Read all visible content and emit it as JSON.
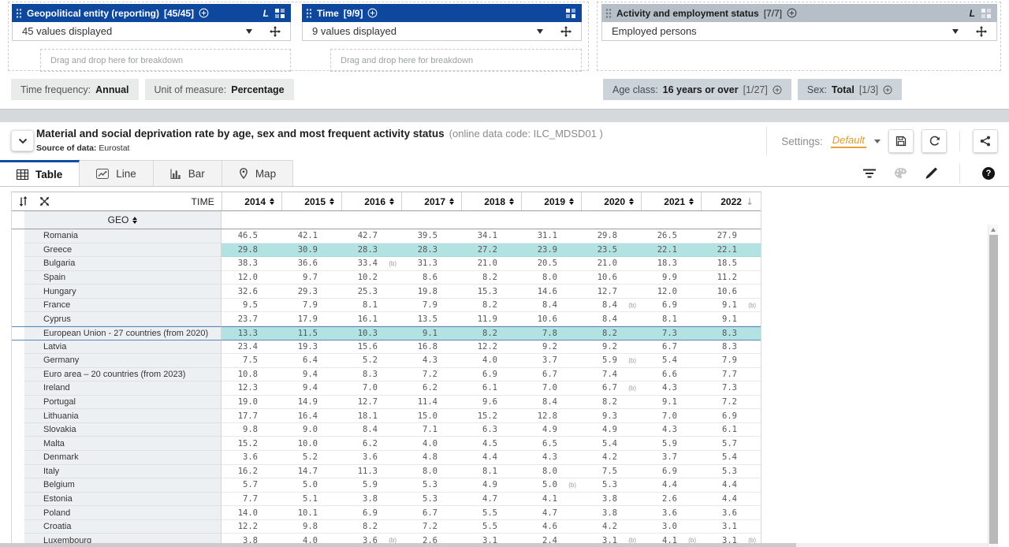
{
  "dimensions": {
    "boxes": [
      {
        "title": "Geopolitical entity (reporting)",
        "count": "[45/45]",
        "value": "45 values displayed",
        "drag_label": "Drag and drop here for breakdown"
      },
      {
        "title": "Time",
        "count": "[9/9]",
        "value": "9 values displayed",
        "drag_label": "Drag and drop here for breakdown"
      },
      {
        "title": "Activity and employment status",
        "count": "[7/7]",
        "value": "Employed persons"
      }
    ]
  },
  "filters": {
    "left": [
      {
        "label": "Time frequency:",
        "value": "Annual"
      },
      {
        "label": "Unit of measure:",
        "value": "Percentage"
      }
    ],
    "right": [
      {
        "label": "Age class:",
        "value": "16 years or over",
        "count": "[1/27]"
      },
      {
        "label": "Sex:",
        "value": "Total",
        "count": "[1/3]"
      }
    ]
  },
  "dataset": {
    "title": "Material and social deprivation rate by age, sex and most frequent activity status",
    "code": "(online data code: ILC_MDSD01 )",
    "source_label": "Source of data:",
    "source_value": "Eurostat",
    "settings_label": "Settings:",
    "settings_value": "Default"
  },
  "tabs": [
    {
      "label": "Table",
      "active": true
    },
    {
      "label": "Line",
      "active": false
    },
    {
      "label": "Bar",
      "active": false
    },
    {
      "label": "Map",
      "active": false
    }
  ],
  "table": {
    "corner_label": "TIME",
    "geo_label": "GEO",
    "years": [
      "2014",
      "2015",
      "2016",
      "2017",
      "2018",
      "2019",
      "2020",
      "2021",
      "2022"
    ],
    "sorted_year": "2022",
    "sort_direction": "descending",
    "flag_note": "(b)",
    "rows": [
      {
        "geo": "Romania",
        "values": [
          "46.5",
          "42.1",
          "42.7",
          "39.5",
          "34.1",
          "31.1",
          "29.8",
          "26.5",
          "27.9"
        ]
      },
      {
        "geo": "Greece",
        "highlight": true,
        "values": [
          "29.8",
          "30.9",
          "28.3",
          "28.3",
          "27.2",
          "23.9",
          "23.5",
          "22.1",
          "22.1"
        ]
      },
      {
        "geo": "Bulgaria",
        "values": [
          "38.3",
          "36.6",
          "33.4",
          "31.3",
          "21.0",
          "20.5",
          "21.0",
          "18.3",
          "18.5"
        ],
        "flags": {
          "2": "(b)"
        }
      },
      {
        "geo": "Spain",
        "values": [
          "12.0",
          "9.7",
          "10.2",
          "8.6",
          "8.2",
          "8.0",
          "10.6",
          "9.9",
          "11.2"
        ]
      },
      {
        "geo": "Hungary",
        "values": [
          "32.6",
          "29.3",
          "25.3",
          "19.8",
          "15.3",
          "14.6",
          "12.7",
          "12.0",
          "10.6"
        ]
      },
      {
        "geo": "France",
        "values": [
          "9.5",
          "7.9",
          "8.1",
          "7.9",
          "8.2",
          "8.4",
          "8.4",
          "6.9",
          "9.1"
        ],
        "flags": {
          "6": "(b)",
          "8": "(b)"
        }
      },
      {
        "geo": "Cyprus",
        "values": [
          "23.7",
          "17.9",
          "16.1",
          "13.5",
          "11.9",
          "10.6",
          "8.4",
          "8.1",
          "9.1"
        ]
      },
      {
        "geo": "European Union - 27 countries (from 2020)",
        "highlight": true,
        "eu_border": true,
        "values": [
          "13.3",
          "11.5",
          "10.3",
          "9.1",
          "8.2",
          "7.8",
          "8.2",
          "7.3",
          "8.3"
        ]
      },
      {
        "geo": "Latvia",
        "values": [
          "23.4",
          "19.3",
          "15.6",
          "16.8",
          "12.2",
          "9.2",
          "9.2",
          "6.7",
          "8.3"
        ]
      },
      {
        "geo": "Germany",
        "values": [
          "7.5",
          "6.4",
          "5.2",
          "4.3",
          "4.0",
          "3.7",
          "5.9",
          "5.4",
          "7.9"
        ],
        "flags": {
          "6": "(b)"
        }
      },
      {
        "geo": "Euro area – 20 countries (from 2023)",
        "values": [
          "10.8",
          "9.4",
          "8.3",
          "7.2",
          "6.9",
          "6.7",
          "7.4",
          "6.6",
          "7.7"
        ]
      },
      {
        "geo": "Ireland",
        "values": [
          "12.3",
          "9.4",
          "7.0",
          "6.2",
          "6.1",
          "7.0",
          "6.7",
          "4.3",
          "7.3"
        ],
        "flags": {
          "6": "(b)"
        }
      },
      {
        "geo": "Portugal",
        "values": [
          "19.0",
          "14.9",
          "12.7",
          "11.4",
          "9.6",
          "8.4",
          "8.2",
          "9.1",
          "7.2"
        ]
      },
      {
        "geo": "Lithuania",
        "values": [
          "17.7",
          "16.4",
          "18.1",
          "15.0",
          "15.2",
          "12.8",
          "9.3",
          "7.0",
          "6.9"
        ]
      },
      {
        "geo": "Slovakia",
        "values": [
          "9.8",
          "9.0",
          "8.4",
          "7.1",
          "6.3",
          "4.9",
          "4.9",
          "4.3",
          "6.1"
        ]
      },
      {
        "geo": "Malta",
        "values": [
          "15.2",
          "10.0",
          "6.2",
          "4.0",
          "4.5",
          "6.5",
          "5.4",
          "5.9",
          "5.7"
        ]
      },
      {
        "geo": "Denmark",
        "values": [
          "3.6",
          "5.2",
          "3.6",
          "4.8",
          "4.4",
          "4.3",
          "4.2",
          "3.7",
          "5.4"
        ]
      },
      {
        "geo": "Italy",
        "values": [
          "16.2",
          "14.7",
          "11.3",
          "8.0",
          "8.1",
          "8.0",
          "7.5",
          "6.9",
          "5.3"
        ]
      },
      {
        "geo": "Belgium",
        "values": [
          "5.7",
          "5.0",
          "5.9",
          "5.3",
          "4.9",
          "5.0",
          "5.3",
          "4.4",
          "4.4"
        ],
        "flags": {
          "5": "(b)"
        }
      },
      {
        "geo": "Estonia",
        "values": [
          "7.7",
          "5.1",
          "3.8",
          "5.3",
          "4.7",
          "4.1",
          "3.8",
          "2.6",
          "4.4"
        ]
      },
      {
        "geo": "Poland",
        "values": [
          "14.0",
          "10.1",
          "6.9",
          "6.7",
          "5.5",
          "4.7",
          "3.8",
          "3.6",
          "3.6"
        ]
      },
      {
        "geo": "Croatia",
        "values": [
          "12.2",
          "9.8",
          "8.2",
          "7.2",
          "5.5",
          "4.6",
          "4.2",
          "3.0",
          "3.1"
        ]
      },
      {
        "geo": "Luxembourg",
        "values": [
          "3.8",
          "4.0",
          "3.6",
          "2.6",
          "3.1",
          "2.4",
          "3.1",
          "4.1",
          "3.1"
        ],
        "flags": {
          "2": "(b)",
          "6": "(b)",
          "7": "(b)",
          "8": "(b)"
        }
      }
    ]
  },
  "colors": {
    "header_blue": "#0d479e",
    "header_gray": "#b6bfc8",
    "highlight_teal": "#b2e2e2",
    "settings_orange": "#e09b2d"
  }
}
